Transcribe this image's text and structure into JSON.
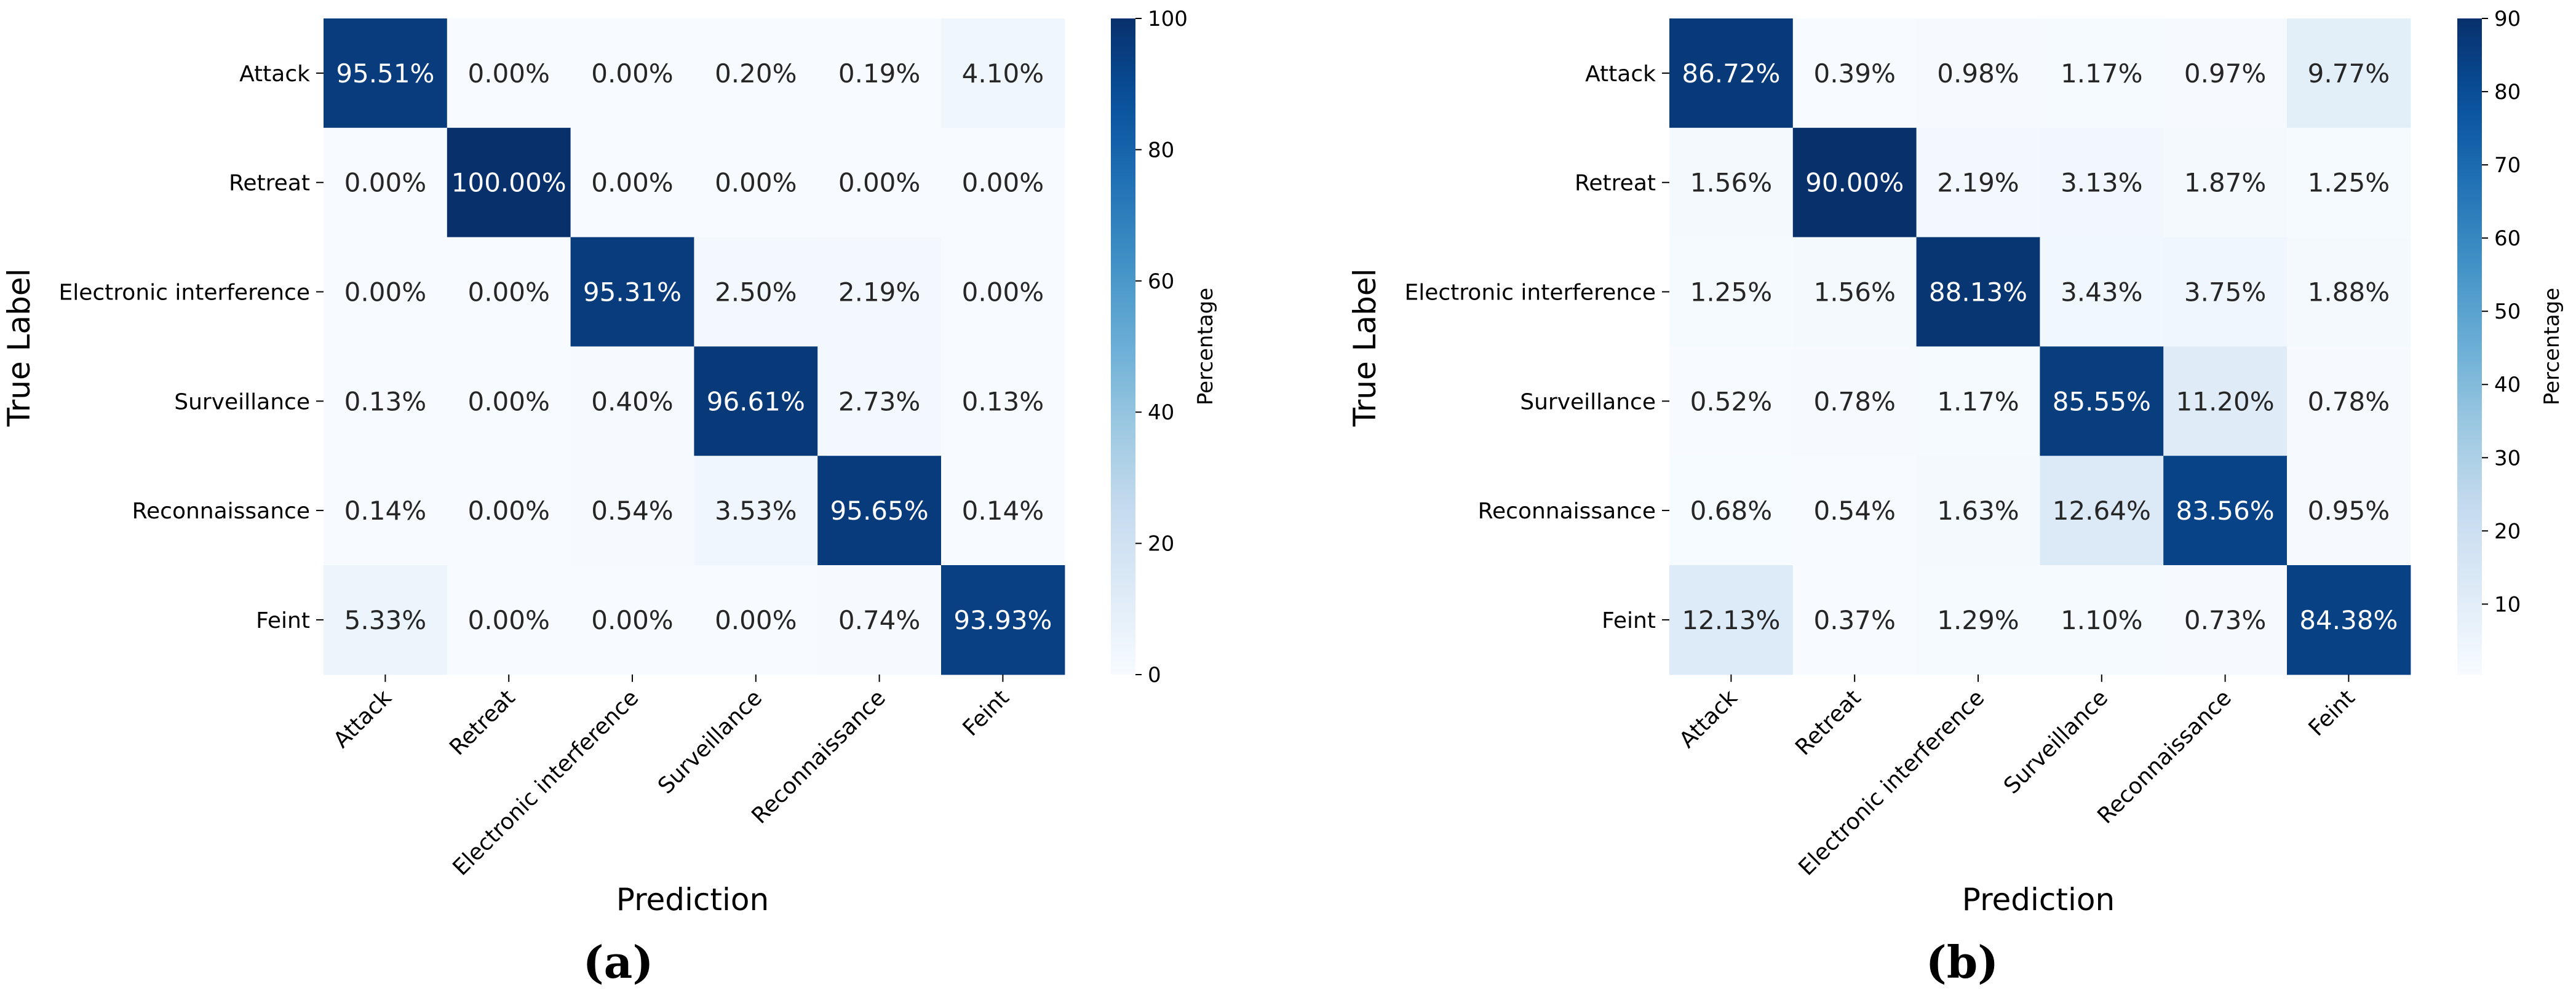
{
  "chart_data": [
    {
      "type": "heatmap",
      "panel_label": "(a)",
      "title": "",
      "xlabel": "Prediction",
      "ylabel": "True Label",
      "rows": [
        "Attack",
        "Retreat",
        "Electronic interference",
        "Surveillance",
        "Reconnaissance",
        "Feint"
      ],
      "columns": [
        "Attack",
        "Retreat",
        "Electronic interference",
        "Surveillance",
        "Reconnaissance",
        "Feint"
      ],
      "values": [
        [
          95.51,
          0.0,
          0.0,
          0.2,
          0.19,
          4.1
        ],
        [
          0.0,
          100.0,
          0.0,
          0.0,
          0.0,
          0.0
        ],
        [
          0.0,
          0.0,
          95.31,
          2.5,
          2.19,
          0.0
        ],
        [
          0.13,
          0.0,
          0.4,
          96.61,
          2.73,
          0.13
        ],
        [
          0.14,
          0.0,
          0.54,
          3.53,
          95.65,
          0.14
        ],
        [
          5.33,
          0.0,
          0.0,
          0.0,
          0.74,
          93.93
        ]
      ],
      "colorbar": {
        "label": "Percentage",
        "range": [
          0,
          100
        ],
        "ticks": [
          0,
          20,
          40,
          60,
          80,
          100
        ]
      },
      "colormap": "Blues"
    },
    {
      "type": "heatmap",
      "panel_label": "(b)",
      "title": "",
      "xlabel": "Prediction",
      "ylabel": "True Label",
      "rows": [
        "Attack",
        "Retreat",
        "Electronic interference",
        "Surveillance",
        "Reconnaissance",
        "Feint"
      ],
      "columns": [
        "Attack",
        "Retreat",
        "Electronic interference",
        "Surveillance",
        "Reconnaissance",
        "Feint"
      ],
      "values": [
        [
          86.72,
          0.39,
          0.98,
          1.17,
          0.97,
          9.77
        ],
        [
          1.56,
          90.0,
          2.19,
          3.13,
          1.87,
          1.25
        ],
        [
          1.25,
          1.56,
          88.13,
          3.43,
          3.75,
          1.88
        ],
        [
          0.52,
          0.78,
          1.17,
          85.55,
          11.2,
          0.78
        ],
        [
          0.68,
          0.54,
          1.63,
          12.64,
          83.56,
          0.95
        ],
        [
          12.13,
          0.37,
          1.29,
          1.1,
          0.73,
          84.38
        ]
      ],
      "colorbar": {
        "label": "Percentage",
        "range": [
          0.37,
          90
        ],
        "ticks": [
          10,
          20,
          30,
          40,
          50,
          60,
          70,
          80,
          90
        ]
      },
      "colormap": "Blues"
    }
  ]
}
